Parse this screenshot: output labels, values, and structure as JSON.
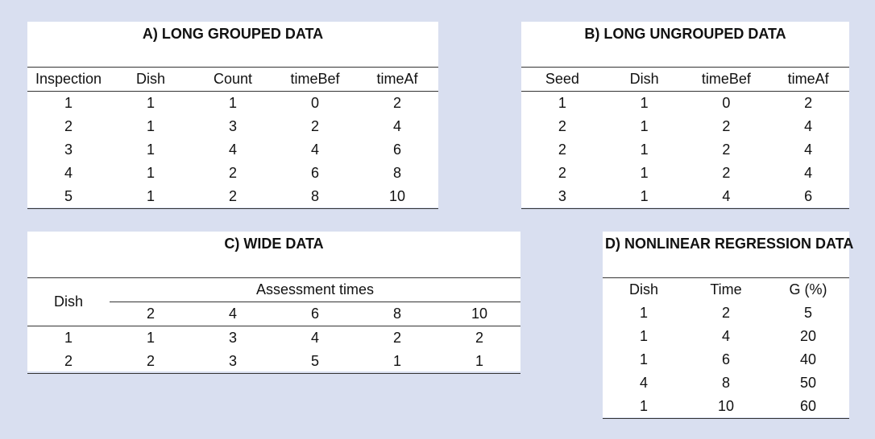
{
  "panelA": {
    "title": "A) LONG GROUPED DATA",
    "headers": [
      "Inspection",
      "Dish",
      "Count",
      "timeBef",
      "timeAf"
    ],
    "rows": [
      [
        "1",
        "1",
        "1",
        "0",
        "2"
      ],
      [
        "2",
        "1",
        "3",
        "2",
        "4"
      ],
      [
        "3",
        "1",
        "4",
        "4",
        "6"
      ],
      [
        "4",
        "1",
        "2",
        "6",
        "8"
      ],
      [
        "5",
        "1",
        "2",
        "8",
        "10"
      ]
    ]
  },
  "panelB": {
    "title": "B) LONG UNGROUPED DATA",
    "headers": [
      "Seed",
      "Dish",
      "timeBef",
      "timeAf"
    ],
    "rows": [
      [
        "1",
        "1",
        "0",
        "2"
      ],
      [
        "2",
        "1",
        "2",
        "4"
      ],
      [
        "2",
        "1",
        "2",
        "4"
      ],
      [
        "2",
        "1",
        "2",
        "4"
      ],
      [
        "3",
        "1",
        "4",
        "6"
      ]
    ]
  },
  "panelC": {
    "title": "C) WIDE DATA",
    "dish_header": "Dish",
    "group_header": "Assessment times",
    "times": [
      "2",
      "4",
      "6",
      "8",
      "10"
    ],
    "rows": [
      [
        "1",
        "1",
        "3",
        "4",
        "2",
        "2"
      ],
      [
        "2",
        "2",
        "3",
        "5",
        "1",
        "1"
      ]
    ]
  },
  "panelD": {
    "title": "D) NONLINEAR REGRESSION DATA",
    "headers": [
      "Dish",
      "Time",
      "G (%)"
    ],
    "rows": [
      [
        "1",
        "2",
        "5"
      ],
      [
        "1",
        "4",
        "20"
      ],
      [
        "1",
        "6",
        "40"
      ],
      [
        "4",
        "8",
        "50"
      ],
      [
        "1",
        "10",
        "60"
      ]
    ]
  }
}
